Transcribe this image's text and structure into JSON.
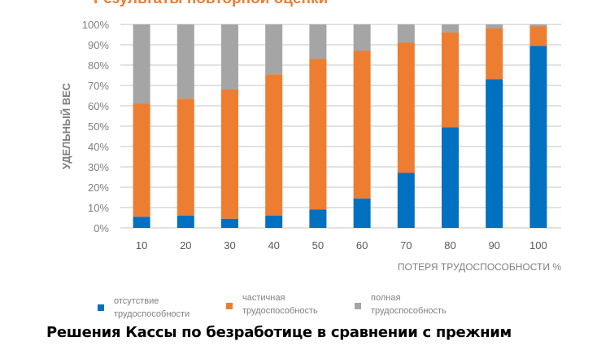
{
  "chart_data": {
    "type": "bar",
    "stacked": true,
    "title": "Результаты повторной оценки",
    "xlabel": "ПОТЕРЯ ТРУДОСПОСОБНОСТИ %",
    "ylabel": "УДЕЛЬНЫЙ ВЕС",
    "ylim": [
      0,
      100
    ],
    "yticks": [
      "0%",
      "10%",
      "20%",
      "30%",
      "40%",
      "50%",
      "60%",
      "70%",
      "80%",
      "90%",
      "100%"
    ],
    "categories": [
      "10",
      "20",
      "30",
      "40",
      "50",
      "60",
      "70",
      "80",
      "90",
      "100"
    ],
    "grid": true,
    "legend_position": "bottom",
    "series": [
      {
        "name": "отсутствие трудоспособности",
        "name_lines": [
          "отсутствие",
          "трудоспособности"
        ],
        "color": "#0070C0",
        "values": [
          5.5,
          6,
          4.5,
          6,
          9,
          14.5,
          27,
          49.5,
          73,
          89.5
        ]
      },
      {
        "name": "частичная трудоспособность",
        "name_lines": [
          "частичная",
          "трудоспособность"
        ],
        "color": "#ED7D31",
        "values": [
          55.5,
          57.5,
          63.5,
          69.5,
          74,
          72.5,
          64,
          46.5,
          25,
          9.5
        ]
      },
      {
        "name": "полная трудоспособность",
        "name_lines": [
          "полная",
          "трудоспособность"
        ],
        "color": "#A5A5A5",
        "values": [
          39,
          36.5,
          32,
          24.5,
          17,
          13,
          9,
          4,
          2,
          1
        ]
      }
    ]
  },
  "caption": "Решения Кассы по безработице в сравнении с прежним"
}
